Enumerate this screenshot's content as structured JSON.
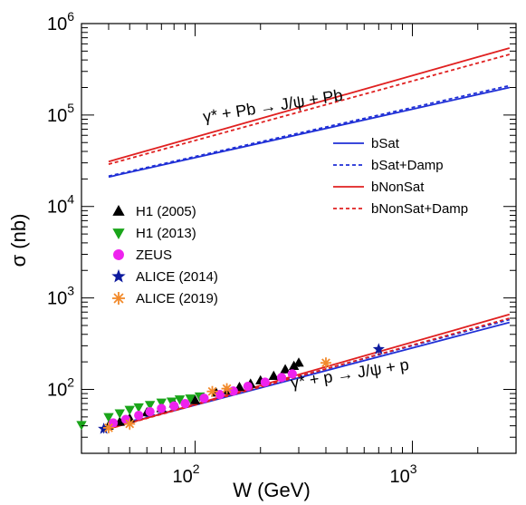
{
  "chart_data": {
    "type": "line",
    "title": "",
    "xlabel": "W (GeV)",
    "ylabel": "σ (nb)",
    "x_scale": "log",
    "y_scale": "log",
    "xlim": [
      30,
      3000
    ],
    "ylim": [
      20,
      1000000
    ],
    "grid": false,
    "x_ticks": [
      {
        "value": 100,
        "base": "10",
        "exp": "2"
      },
      {
        "value": 1000,
        "base": "10",
        "exp": "3"
      }
    ],
    "y_ticks": [
      {
        "value": 100,
        "base": "10",
        "exp": "2"
      },
      {
        "value": 1000,
        "base": "10",
        "exp": "3"
      },
      {
        "value": 10000,
        "base": "10",
        "exp": "4"
      },
      {
        "value": 100000,
        "base": "10",
        "exp": "5"
      },
      {
        "value": 1000000,
        "base": "10",
        "exp": "6"
      }
    ],
    "annotations": [
      {
        "text": "γ* + Pb → J/ψ + Pb",
        "x": 230,
        "y": 110000,
        "angle": -9
      },
      {
        "text": "γ* + p → J/ψ + p",
        "x": 520,
        "y": 130,
        "angle": -9
      }
    ],
    "legend_curves": {
      "placement": "right",
      "entries": [
        {
          "label": "bSat",
          "color": "#1f2fd6",
          "dash": "solid"
        },
        {
          "label": "bSat+Damp",
          "color": "#1f2fd6",
          "dash": "dashed"
        },
        {
          "label": "bNonSat",
          "color": "#e02020",
          "dash": "solid"
        },
        {
          "label": "bNonSat+Damp",
          "color": "#e02020",
          "dash": "dashed"
        }
      ]
    },
    "legend_data": {
      "placement": "center-left",
      "entries": [
        {
          "label": "H1 (2005)",
          "marker": "triangle-up",
          "color": "#000000"
        },
        {
          "label": "H1 (2013)",
          "marker": "triangle-down",
          "color": "#1aa51a"
        },
        {
          "label": "ZEUS",
          "marker": "circle",
          "color": "#ee22ee"
        },
        {
          "label": "ALICE (2014)",
          "marker": "star",
          "color": "#0d1a9e"
        },
        {
          "label": "ALICE (2019)",
          "marker": "asterisk",
          "color": "#f28a2b"
        }
      ]
    },
    "curves": [
      {
        "name": "bSat",
        "group": "Pb",
        "color": "#1f2fd6",
        "dash": "solid",
        "x": [
          40,
          2800
        ],
        "y": [
          21000,
          200000
        ]
      },
      {
        "name": "bSat+Damp",
        "group": "Pb",
        "color": "#1f2fd6",
        "dash": "dashed",
        "x": [
          40,
          2800
        ],
        "y": [
          21500,
          210000
        ]
      },
      {
        "name": "bNonSat",
        "group": "Pb",
        "color": "#e02020",
        "dash": "solid",
        "x": [
          40,
          2800
        ],
        "y": [
          31000,
          540000
        ]
      },
      {
        "name": "bNonSat+Damp",
        "group": "Pb",
        "color": "#e02020",
        "dash": "dashed",
        "x": [
          40,
          2800
        ],
        "y": [
          29000,
          460000
        ]
      },
      {
        "name": "bSat",
        "group": "p",
        "color": "#1f2fd6",
        "dash": "solid",
        "x": [
          40,
          2800
        ],
        "y": [
          38,
          540
        ]
      },
      {
        "name": "bSat+Damp",
        "group": "p",
        "color": "#1f2fd6",
        "dash": "dashed",
        "x": [
          40,
          2800
        ],
        "y": [
          38.5,
          580
        ]
      },
      {
        "name": "bNonSat",
        "group": "p",
        "color": "#e02020",
        "dash": "solid",
        "x": [
          40,
          2800
        ],
        "y": [
          37,
          660
        ]
      },
      {
        "name": "bNonSat+Damp",
        "group": "p",
        "color": "#e02020",
        "dash": "dashed",
        "x": [
          40,
          2800
        ],
        "y": [
          37,
          600
        ]
      }
    ],
    "data_series": [
      {
        "name": "H1 (2005)",
        "marker": "triangle-up",
        "color": "#000000",
        "points": [
          {
            "x": 40,
            "y": 40,
            "err": 3
          },
          {
            "x": 45,
            "y": 44,
            "err": 3
          },
          {
            "x": 50,
            "y": 48,
            "err": 4
          },
          {
            "x": 60,
            "y": 56,
            "err": 4
          },
          {
            "x": 70,
            "y": 62,
            "err": 5
          },
          {
            "x": 80,
            "y": 70,
            "err": 5
          },
          {
            "x": 100,
            "y": 76,
            "err": 6
          },
          {
            "x": 125,
            "y": 92,
            "err": 7
          },
          {
            "x": 140,
            "y": 97,
            "err": 8
          },
          {
            "x": 160,
            "y": 106,
            "err": 9
          },
          {
            "x": 180,
            "y": 115,
            "err": 10
          },
          {
            "x": 200,
            "y": 125,
            "err": 11
          },
          {
            "x": 230,
            "y": 140,
            "err": 13
          },
          {
            "x": 260,
            "y": 165,
            "err": 16
          },
          {
            "x": 285,
            "y": 180,
            "err": 18
          },
          {
            "x": 300,
            "y": 195,
            "err": 20
          }
        ]
      },
      {
        "name": "H1 (2013)",
        "marker": "triangle-down",
        "color": "#1aa51a",
        "points": [
          {
            "x": 30,
            "y": 41,
            "err": 3
          },
          {
            "x": 40,
            "y": 50,
            "err": 3
          },
          {
            "x": 45,
            "y": 55,
            "err": 3
          },
          {
            "x": 50,
            "y": 60,
            "err": 4
          },
          {
            "x": 55,
            "y": 64,
            "err": 4
          },
          {
            "x": 62,
            "y": 68,
            "err": 4
          },
          {
            "x": 70,
            "y": 72,
            "err": 5
          },
          {
            "x": 78,
            "y": 74,
            "err": 5
          },
          {
            "x": 85,
            "y": 78,
            "err": 5
          },
          {
            "x": 95,
            "y": 80,
            "err": 5
          },
          {
            "x": 105,
            "y": 84,
            "err": 6
          }
        ]
      },
      {
        "name": "ZEUS",
        "marker": "circle",
        "color": "#ee22ee",
        "points": [
          {
            "x": 42,
            "y": 43,
            "err": 3
          },
          {
            "x": 48,
            "y": 47,
            "err": 3
          },
          {
            "x": 55,
            "y": 52,
            "err": 3
          },
          {
            "x": 62,
            "y": 57,
            "err": 4
          },
          {
            "x": 70,
            "y": 62,
            "err": 4
          },
          {
            "x": 80,
            "y": 66,
            "err": 4
          },
          {
            "x": 90,
            "y": 70,
            "err": 5
          },
          {
            "x": 110,
            "y": 80,
            "err": 5
          },
          {
            "x": 130,
            "y": 88,
            "err": 6
          },
          {
            "x": 150,
            "y": 96,
            "err": 6
          },
          {
            "x": 175,
            "y": 108,
            "err": 7
          },
          {
            "x": 210,
            "y": 120,
            "err": 8
          },
          {
            "x": 250,
            "y": 135,
            "err": 9
          },
          {
            "x": 280,
            "y": 148,
            "err": 10
          }
        ]
      },
      {
        "name": "ALICE (2014)",
        "marker": "star",
        "color": "#0d1a9e",
        "points": [
          {
            "x": 38,
            "y": 37,
            "err": 4
          },
          {
            "x": 700,
            "y": 275,
            "err": 35
          }
        ]
      },
      {
        "name": "ALICE (2019)",
        "marker": "asterisk",
        "color": "#f28a2b",
        "points": [
          {
            "x": 40,
            "y": 38,
            "err": 4
          },
          {
            "x": 50,
            "y": 42,
            "err": 6
          },
          {
            "x": 120,
            "y": 95,
            "err": 8
          },
          {
            "x": 140,
            "y": 102,
            "err": 10
          },
          {
            "x": 400,
            "y": 195,
            "err": 20
          }
        ]
      }
    ]
  }
}
